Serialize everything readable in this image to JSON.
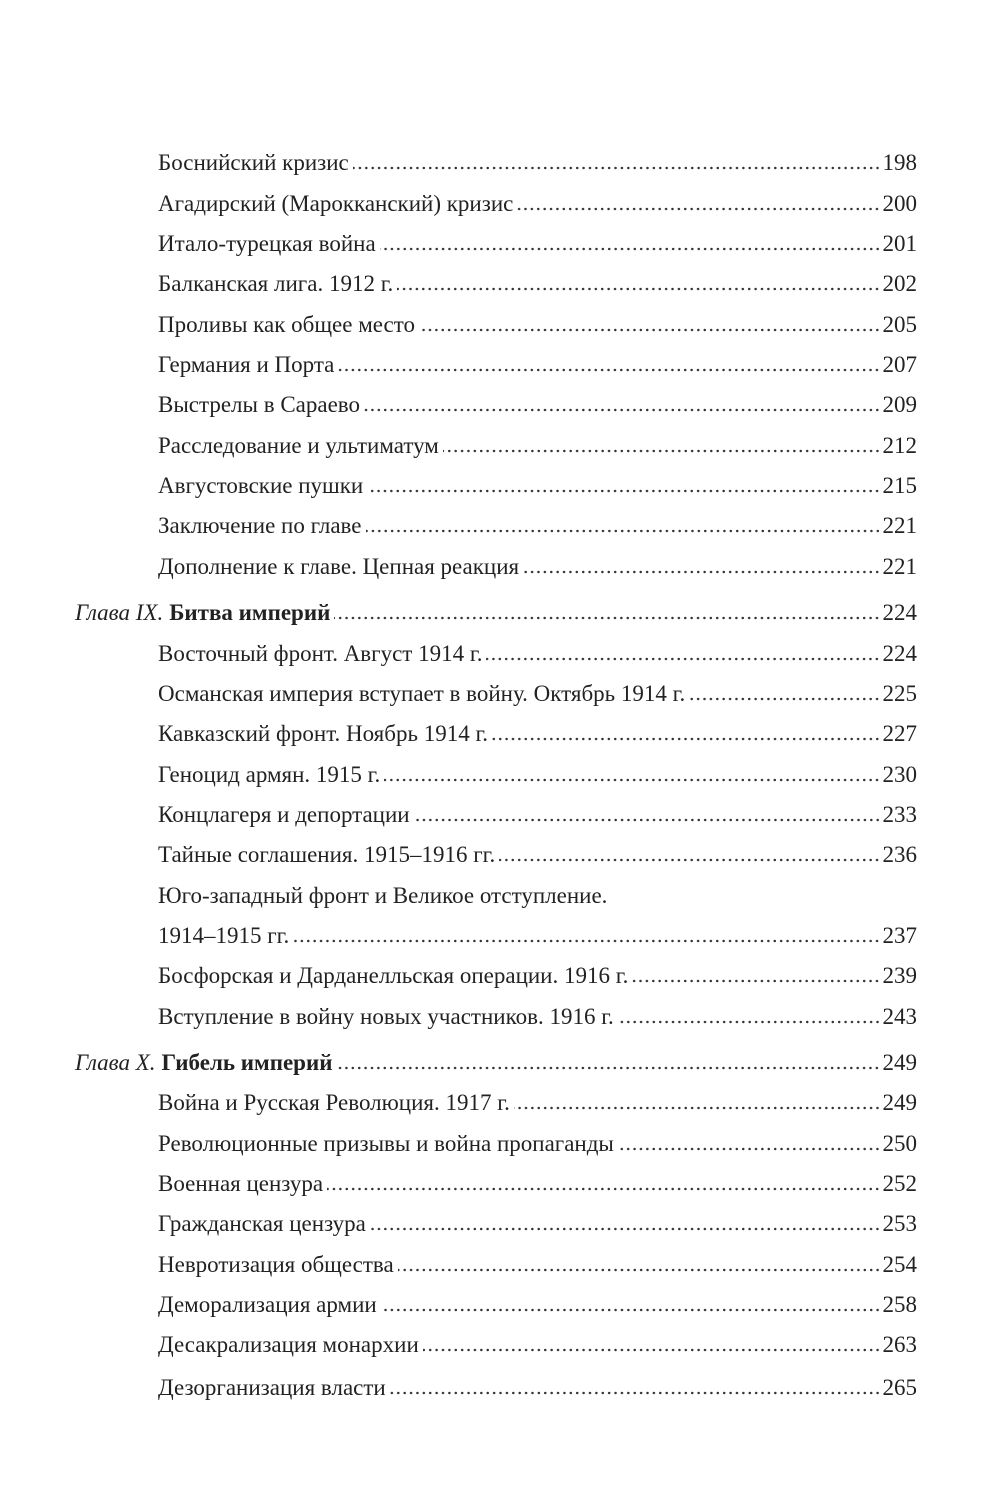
{
  "entries": [
    {
      "type": "sub",
      "title": "Боснийский кризис",
      "page": "198"
    },
    {
      "type": "sub",
      "title": "Агадирский (Марокканский) кризис",
      "page": "200"
    },
    {
      "type": "sub",
      "title": "Итало-турецкая война",
      "page": "201"
    },
    {
      "type": "sub",
      "title": "Балканская лига. 1912 г.",
      "page": "202"
    },
    {
      "type": "sub",
      "title": "Проливы как общее место",
      "page": "205"
    },
    {
      "type": "sub",
      "title": "Германия и Порта",
      "page": "207"
    },
    {
      "type": "sub",
      "title": "Выстрелы в Сараево",
      "page": "209"
    },
    {
      "type": "sub",
      "title": "Расследование и ультиматум",
      "page": "212"
    },
    {
      "type": "sub",
      "title": "Августовские пушки",
      "page": "215"
    },
    {
      "type": "sub",
      "title": "Заключение по главе",
      "page": "221"
    },
    {
      "type": "sub",
      "title": "Дополнение к главе. Цепная реакция",
      "page": "221"
    },
    {
      "type": "chap",
      "prefix": "Глава IX.",
      "title": "Битва империй",
      "page": "224"
    },
    {
      "type": "sub",
      "title": "Восточный фронт. Август 1914 г.",
      "page": "224"
    },
    {
      "type": "sub",
      "title": "Османская империя вступает в войну. Октябрь 1914 г.",
      "page": "225"
    },
    {
      "type": "sub",
      "title": "Кавказский фронт. Ноябрь 1914 г.",
      "page": "227"
    },
    {
      "type": "sub",
      "title": "Геноцид армян. 1915 г.",
      "page": "230"
    },
    {
      "type": "sub",
      "title": "Концлагеря и депортации",
      "page": "233"
    },
    {
      "type": "sub",
      "title": "Тайные соглашения. 1915–1916 гг.",
      "page": "236"
    },
    {
      "type": "sub-first",
      "title": "Юго-западный фронт и Великое отступление."
    },
    {
      "type": "sub",
      "title": "1914–1915 гг.",
      "page": "237"
    },
    {
      "type": "sub",
      "title": "Босфорская и Дарданелльская операции. 1916 г.",
      "page": "239"
    },
    {
      "type": "sub",
      "title": "Вступление в войну новых участников. 1916 г.",
      "page": "243"
    },
    {
      "type": "chap",
      "prefix": "Глава X.",
      "title": "Гибель империй",
      "page": "249"
    },
    {
      "type": "sub",
      "title": "Война и Русская Революция. 1917 г.",
      "page": "249"
    },
    {
      "type": "sub",
      "title": "Революционные призывы и война пропаганды",
      "page": "250"
    },
    {
      "type": "sub",
      "title": "Военная цензура",
      "page": "252"
    },
    {
      "type": "sub",
      "title": "Гражданская цензура",
      "page": "253"
    },
    {
      "type": "sub",
      "title": "Невротизация общества",
      "page": "254"
    },
    {
      "type": "sub",
      "title": "Деморализация армии",
      "page": "258"
    },
    {
      "type": "sub",
      "title": "Десакрализация монархии",
      "page": "263"
    },
    {
      "type": "sub",
      "title": "Дезорганизация власти",
      "page": "265"
    }
  ]
}
